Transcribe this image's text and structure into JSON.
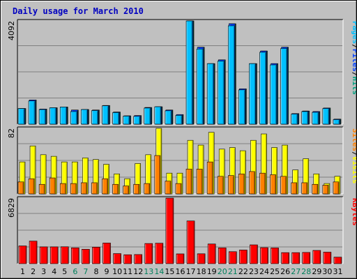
{
  "chart_data": {
    "type": "bar",
    "title": "Daily usage for March 2010",
    "categories": [
      "1",
      "2",
      "3",
      "4",
      "5",
      "6",
      "7",
      "8",
      "9",
      "10",
      "11",
      "12",
      "13",
      "14",
      "15",
      "16",
      "17",
      "18",
      "19",
      "20",
      "21",
      "22",
      "23",
      "24",
      "25",
      "26",
      "27",
      "28",
      "29",
      "30",
      "31"
    ],
    "weekend_days": [
      "6",
      "7",
      "13",
      "14",
      "20",
      "21",
      "27",
      "28"
    ],
    "panels": [
      {
        "id": "hits",
        "max_label": "4092",
        "ymax": 4092,
        "legend": [
          "Pages",
          "/",
          "Files",
          "/",
          "Hits"
        ],
        "legend_colors": [
          "#00c0ff",
          "#000000",
          "#0040ff",
          "#000000",
          "#00a080"
        ],
        "series": [
          {
            "name": "Hits",
            "color": "#00805c",
            "values": [
              620,
              960,
              600,
              650,
              680,
              560,
              580,
              560,
              740,
              480,
              330,
              340,
              660,
              690,
              560,
              380,
              4092,
              3050,
              2400,
              2550,
              3980,
              1400,
              2400,
              2900,
              2400,
              3050,
              420,
              520,
              500,
              640,
              200
            ]
          },
          {
            "name": "Files",
            "color": "#0040ff",
            "values": [
              620,
              960,
              600,
              650,
              680,
              560,
              580,
              560,
              740,
              480,
              330,
              340,
              660,
              690,
              560,
              380,
              4092,
              3050,
              2400,
              2550,
              3980,
              1400,
              2400,
              2900,
              2400,
              3050,
              420,
              520,
              500,
              640,
              200
            ]
          },
          {
            "name": "Pages",
            "color": "#00c0ff",
            "values": [
              620,
              920,
              580,
              650,
              680,
              500,
              580,
              540,
              730,
              460,
              320,
              310,
              640,
              690,
              530,
              350,
              4092,
              2980,
              2400,
              2500,
              3900,
              1360,
              2400,
              2850,
              2350,
              3000,
              400,
              500,
              470,
              620,
              180
            ]
          }
        ]
      },
      {
        "id": "visits",
        "max_label": "82",
        "ymax": 82,
        "legend": [
          "Sites",
          "/",
          "Visits"
        ],
        "legend_colors": [
          "#ff8000",
          "#000000",
          "#ffff00"
        ],
        "series": [
          {
            "name": "Visits",
            "color": "#ffff00",
            "values": [
              40,
              60,
              49,
              47,
              40,
              40,
              45,
              43,
              37,
              25,
              19,
              38,
              49,
              82,
              26,
              26,
              67,
              61,
              77,
              56,
              58,
              54,
              67,
              75,
              58,
              61,
              30,
              44,
              25,
              13,
              22
            ]
          },
          {
            "name": "Sites",
            "color": "#ff8000",
            "values": [
              15,
              19,
              12,
              20,
              13,
              13,
              14,
              14,
              19,
              12,
              10,
              12,
              13,
              48,
              16,
              13,
              31,
              31,
              40,
              22,
              23,
              25,
              28,
              26,
              24,
              22,
              14,
              14,
              12,
              11,
              15
            ]
          }
        ]
      },
      {
        "id": "kbytes",
        "max_label": "6829",
        "ymax": 6829,
        "legend": [
          "KBytes"
        ],
        "legend_colors": [
          "#ff0000"
        ],
        "series": [
          {
            "name": "KBytes",
            "color": "#ff0000",
            "values": [
              1850,
              2350,
              1750,
              1750,
              1760,
              1650,
              1500,
              1720,
              2150,
              1050,
              930,
              950,
              2100,
              2130,
              6829,
              1020,
              4450,
              1030,
              2050,
              1650,
              1250,
              1420,
              1960,
              1670,
              1640,
              1150,
              1150,
              1170,
              1380,
              1200,
              680
            ]
          }
        ]
      }
    ]
  }
}
